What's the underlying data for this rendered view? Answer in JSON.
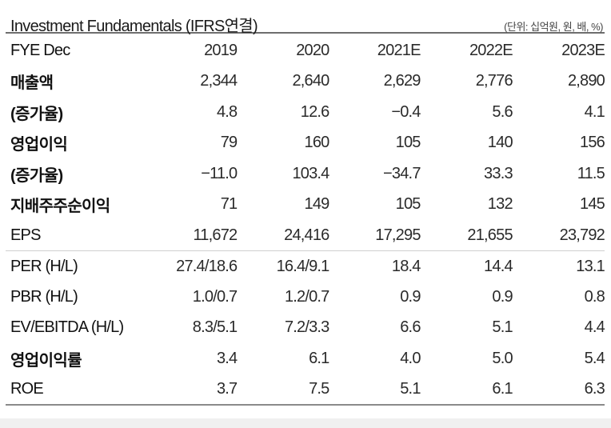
{
  "header": {
    "title": "Investment Fundamentals (IFRS연결)",
    "units": "(단위: 십억원, 원, 배, %)"
  },
  "table": {
    "columns": [
      "FYE Dec",
      "2019",
      "2020",
      "2021E",
      "2022E",
      "2023E"
    ],
    "rows": [
      {
        "label": "매출액",
        "bold": true,
        "values": [
          "2,344",
          "2,640",
          "2,629",
          "2,776",
          "2,890"
        ]
      },
      {
        "label": "(증가율)",
        "bold": true,
        "values": [
          "4.8",
          "12.6",
          "−0.4",
          "5.6",
          "4.1"
        ]
      },
      {
        "label": "영업이익",
        "bold": true,
        "values": [
          "79",
          "160",
          "105",
          "140",
          "156"
        ]
      },
      {
        "label": "(증가율)",
        "bold": true,
        "values": [
          "−11.0",
          "103.4",
          "−34.7",
          "33.3",
          "11.5"
        ]
      },
      {
        "label": "지배주주순이익",
        "bold": true,
        "values": [
          "71",
          "149",
          "105",
          "132",
          "145"
        ]
      },
      {
        "label": "EPS",
        "bold": false,
        "values": [
          "11,672",
          "24,416",
          "17,295",
          "21,655",
          "23,792"
        ]
      },
      {
        "label": "PER (H/L)",
        "bold": false,
        "values": [
          "27.4/18.6",
          "16.4/9.1",
          "18.4",
          "14.4",
          "13.1"
        ]
      },
      {
        "label": "PBR (H/L)",
        "bold": false,
        "values": [
          "1.0/0.7",
          "1.2/0.7",
          "0.9",
          "0.9",
          "0.8"
        ]
      },
      {
        "label": "EV/EBITDA (H/L)",
        "bold": false,
        "values": [
          "8.3/5.1",
          "7.2/3.3",
          "6.6",
          "5.1",
          "4.4"
        ]
      },
      {
        "label": "영업이익률",
        "bold": true,
        "values": [
          "3.4",
          "6.1",
          "4.0",
          "5.0",
          "5.4"
        ]
      },
      {
        "label": "ROE",
        "bold": false,
        "values": [
          "3.7",
          "7.5",
          "5.1",
          "6.1",
          "6.3"
        ]
      }
    ]
  }
}
